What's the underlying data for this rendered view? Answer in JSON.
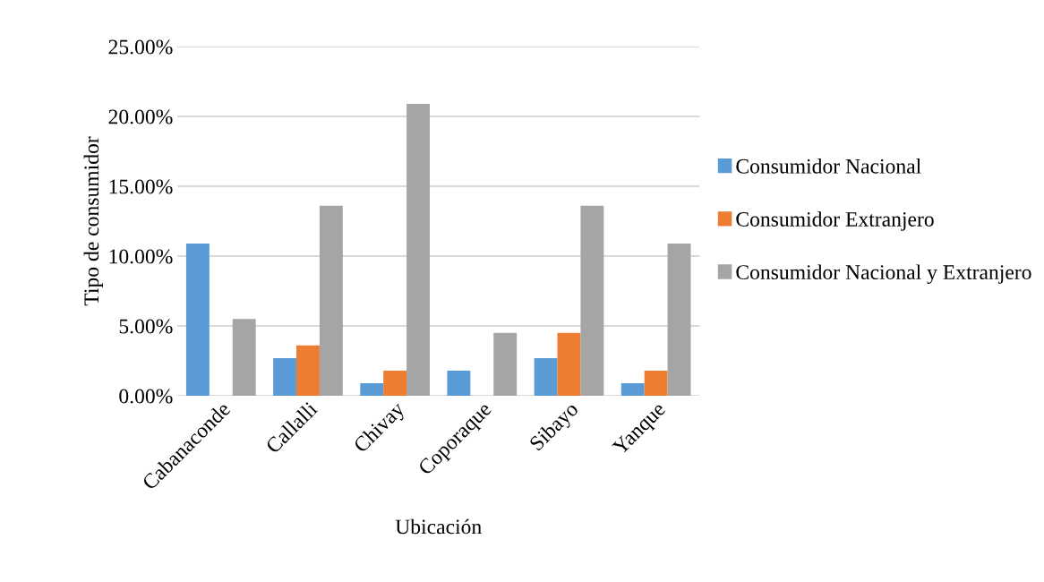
{
  "chart_data": {
    "type": "bar",
    "xlabel": "Ubicación",
    "ylabel": "Tipo de consumidor",
    "categories": [
      "Cabanaconde",
      "Callalli",
      "Chivay",
      "Coporaque",
      "Sibayo",
      "Yanque"
    ],
    "series": [
      {
        "name": "Consumidor Nacional",
        "color": "#5b9bd5",
        "values": [
          10.9,
          2.7,
          0.9,
          1.8,
          2.7,
          0.9
        ]
      },
      {
        "name": "Consumidor Extranjero",
        "color": "#ed7d31",
        "values": [
          0,
          3.6,
          1.8,
          0,
          4.5,
          1.8
        ]
      },
      {
        "name": "Consumidor Nacional y Extranjero",
        "color": "#a5a5a5",
        "values": [
          5.5,
          13.6,
          20.9,
          4.5,
          13.6,
          10.9
        ]
      }
    ],
    "ylim": [
      0,
      25
    ],
    "yticks": [
      {
        "value": 0,
        "label": "0.00%"
      },
      {
        "value": 5,
        "label": "5.00%"
      },
      {
        "value": 10,
        "label": "10.00%"
      },
      {
        "value": 15,
        "label": "15.00%"
      },
      {
        "value": 20,
        "label": "20.00%"
      },
      {
        "value": 25,
        "label": "25.00%"
      }
    ],
    "grid": "y",
    "legend": "right"
  }
}
